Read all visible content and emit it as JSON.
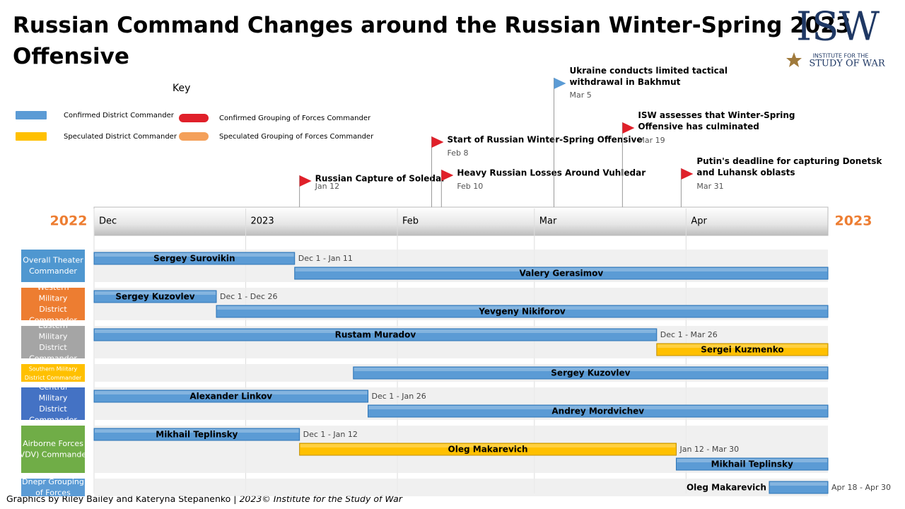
{
  "chart_data": {
    "type": "timeline",
    "title": "Russian Command Changes around the Russian Winter-Spring 2023 Offensive",
    "key_title": "Key",
    "key": [
      {
        "name": "Confirmed District Commander",
        "color": "#5b9bd5"
      },
      {
        "name": "Speculated District Commander",
        "color": "#ffc000"
      },
      {
        "name": "Confirmed Grouping of Forces Commander",
        "color": "#e0202a"
      },
      {
        "name": "Speculated Grouping of Forces Commander",
        "color": "#f4a05a"
      }
    ],
    "year_left": "2022",
    "year_right": "2023",
    "xlim": [
      "2022-12-01",
      "2023-04-30"
    ],
    "xticks": [
      {
        "value": "2022-12-01",
        "label": "Dec"
      },
      {
        "value": "2023-01-01",
        "label": "2023"
      },
      {
        "value": "2023-02-01",
        "label": "Feb"
      },
      {
        "value": "2023-03-01",
        "label": "Mar"
      },
      {
        "value": "2023-04-01",
        "label": "Apr"
      }
    ],
    "events": [
      {
        "text": "Russian Capture of Soledar",
        "date": {
          "value": "2023-01-12",
          "label": "Jan 12"
        },
        "color": "#e0202a"
      },
      {
        "text": "Start of Russian Winter-Spring Offensive",
        "date": {
          "value": "2023-02-08",
          "label": "Feb 8"
        },
        "color": "#e0202a"
      },
      {
        "text": "Heavy Russian Losses Around Vuhledar",
        "date": {
          "value": "2023-02-10",
          "label": "Feb 10"
        },
        "color": "#e0202a"
      },
      {
        "text": "Ukraine conducts limited tactical withdrawal in Bakhmut",
        "date": {
          "value": "2023-03-05",
          "label": "Mar 5"
        },
        "color": "#5b9bd5"
      },
      {
        "text": "ISW assesses that Winter-Spring Offensive has culminated",
        "date": {
          "value": "2023-03-19",
          "label": "Mar 19"
        },
        "color": "#e0202a"
      },
      {
        "text": "Putin's deadline for capturing Donetsk and Luhansk oblasts",
        "date": {
          "value": "2023-03-31",
          "label": "Mar 31"
        },
        "color": "#e0202a"
      }
    ],
    "rows": [
      {
        "label": "Overall Theater Commander",
        "color": "#4f97d0",
        "bars": [
          {
            "name": "Sergey Surovikin",
            "start": "2022-12-01",
            "end": "2023-01-11",
            "color": "#5b9bd5",
            "range_label": "Dec 1 - Jan 11"
          },
          {
            "name": "Valery Gerasimov",
            "start": "2023-01-11",
            "end": "2023-04-30",
            "color": "#5b9bd5"
          }
        ]
      },
      {
        "label": "Western Military District Commander",
        "color": "#ed7d31",
        "bars": [
          {
            "name": "Sergey Kuzovlev",
            "start": "2022-12-01",
            "end": "2022-12-26",
            "color": "#5b9bd5",
            "range_label": "Dec 1 - Dec 26"
          },
          {
            "name": "Yevgeny Nikiforov",
            "start": "2022-12-26",
            "end": "2023-04-30",
            "color": "#5b9bd5"
          }
        ]
      },
      {
        "label": "Eastern Military District Commander",
        "color": "#a5a5a5",
        "bars": [
          {
            "name": "Rustam Muradov",
            "start": "2022-12-01",
            "end": "2023-03-26",
            "color": "#5b9bd5",
            "range_label": "Dec 1 - Mar 26"
          },
          {
            "name": "Sergei Kuzmenko",
            "start": "2023-03-26",
            "end": "2023-04-30",
            "color": "#ffc000"
          }
        ]
      },
      {
        "label": "Southern Military District Commander",
        "color": "#ffc000",
        "small": true,
        "bars": [
          {
            "name": "Sergey Kuzovlev",
            "start": "2023-01-23",
            "end": "2023-04-30",
            "color": "#5b9bd5"
          }
        ]
      },
      {
        "label": "Central Military District Commander",
        "color": "#4472c4",
        "bars": [
          {
            "name": "Alexander Linkov",
            "start": "2022-12-01",
            "end": "2023-01-26",
            "color": "#5b9bd5",
            "range_label": "Dec 1 - Jan 26"
          },
          {
            "name": "Andrey Mordvichev",
            "start": "2023-01-26",
            "end": "2023-04-30",
            "color": "#5b9bd5"
          }
        ]
      },
      {
        "label": "Airborne Forces (VDV) Commander",
        "color": "#70ad47",
        "bars": [
          {
            "name": "Mikhail Teplinsky",
            "start": "2022-12-01",
            "end": "2023-01-12",
            "color": "#5b9bd5",
            "range_label": "Dec 1 - Jan 12"
          },
          {
            "name": "Oleg Makarevich",
            "start": "2023-01-12",
            "end": "2023-03-30",
            "color": "#ffc000",
            "range_label": "Jan 12 - Mar 30"
          },
          {
            "name": "Mikhail Teplinsky",
            "start": "2023-03-30",
            "end": "2023-04-30",
            "color": "#5b9bd5"
          }
        ]
      },
      {
        "label": "Dnepr Grouping of Forces",
        "color": "#5b9bd5",
        "bars": [
          {
            "name": "Oleg Makarevich",
            "start": "2023-04-18",
            "end": "2023-04-30",
            "color": "#5b9bd5",
            "range_label": "Apr 18 - Apr 30"
          }
        ]
      }
    ],
    "logo": {
      "mark": "ISW",
      "line1": "INSTITUTE FOR THE",
      "line2": "STUDY OF WAR"
    },
    "credit": "Graphics by Riley Bailey and Kateryna Stepanenko | ",
    "copyright": "2023© Institute for the Study of War"
  }
}
